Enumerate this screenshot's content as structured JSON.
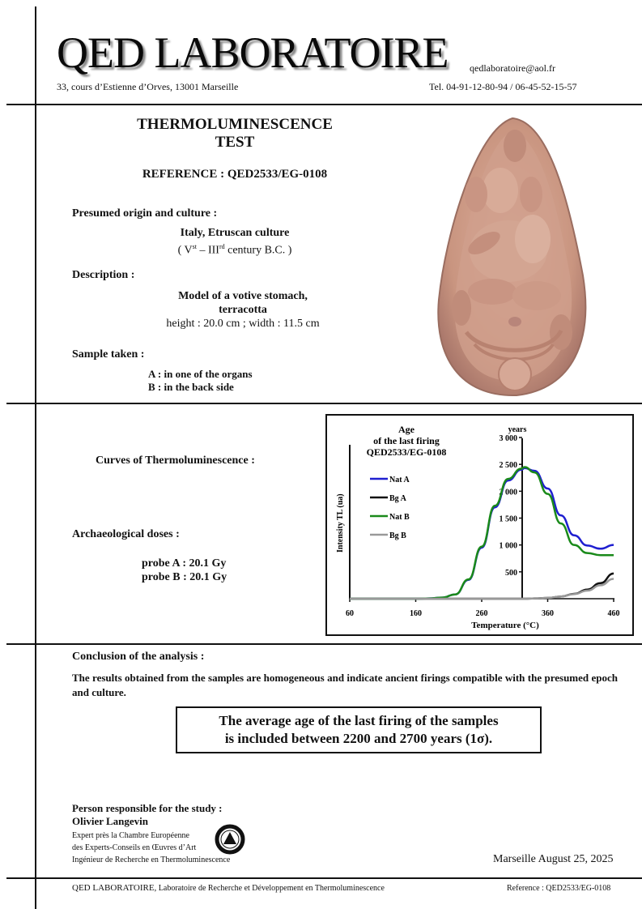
{
  "header": {
    "lab_name": "QED LABORATOIRE",
    "email": "qedlaboratoire@aol.fr",
    "address": "33, cours d’Estienne d’Orves, 13001 Marseille",
    "phone": "Tel. 04-91-12-80-94 / 06-45-52-15-57"
  },
  "test": {
    "title_line1": "THERMOLUMINESCENCE",
    "title_line2": "TEST",
    "reference": "REFERENCE : QED2533/EG-0108"
  },
  "origin": {
    "label": "Presumed origin and culture :",
    "value": "Italy, Etruscan culture",
    "period_open": "( V",
    "period_sup1": "st",
    "period_mid": " – III",
    "period_sup2": "rd",
    "period_close": " century B.C. )"
  },
  "description": {
    "label": "Description :",
    "line1": "Model of a votive stomach,",
    "line2": "terracotta",
    "dimensions": "height : 20.0 cm ; width : 11.5 cm"
  },
  "sample": {
    "label": "Sample taken :",
    "a": "A : in one of the organs",
    "b": "B : in the back side"
  },
  "photo": {
    "alt": "Terracotta votive stomach model with seated figure"
  },
  "curves": {
    "label": "Curves of Thermoluminescence :"
  },
  "doses": {
    "label": "Archaeological doses :",
    "probe_a": "probe A : 20.1 Gy",
    "probe_b": "probe B : 20.1 Gy"
  },
  "chart_data": {
    "type": "line",
    "title": "Age of the last firing QED2533/EG-0108",
    "title_lines": [
      "Age",
      "of the last firing",
      "QED2533/EG-0108"
    ],
    "xlabel": "Temperature (°C)",
    "ylabel": "Intensity TL (ua)",
    "secondary_axis_label": "years",
    "xlim": [
      60,
      460
    ],
    "ylim": [
      0,
      3000
    ],
    "x_ticks": [
      "60",
      "160",
      "260",
      "360",
      "460"
    ],
    "y_ticks": [
      "500",
      "1 000",
      "1 500",
      "2 000",
      "2 500",
      "3 000"
    ],
    "legend_position": "upper-left",
    "grid": false,
    "x": [
      60,
      160,
      180,
      200,
      220,
      240,
      260,
      280,
      300,
      320,
      325,
      340,
      360,
      380,
      400,
      420,
      440,
      460
    ],
    "series": [
      {
        "name": "Nat A",
        "color": "#1f1fd0",
        "values": [
          0,
          0,
          5,
          20,
          80,
          350,
          950,
          1700,
          2200,
          2400,
          2430,
          2380,
          2050,
          1550,
          1180,
          990,
          930,
          1000
        ]
      },
      {
        "name": "Bg A",
        "color": "#111111",
        "values": [
          0,
          0,
          0,
          0,
          0,
          0,
          0,
          0,
          0,
          0,
          0,
          5,
          15,
          40,
          90,
          170,
          290,
          470
        ]
      },
      {
        "name": "Nat B",
        "color": "#1a8a1a",
        "values": [
          0,
          0,
          5,
          20,
          80,
          360,
          970,
          1730,
          2230,
          2420,
          2450,
          2350,
          1950,
          1400,
          1000,
          850,
          810,
          810
        ]
      },
      {
        "name": "Bg B",
        "color": "#999999",
        "values": [
          0,
          0,
          0,
          0,
          0,
          0,
          0,
          0,
          0,
          0,
          0,
          5,
          15,
          40,
          85,
          150,
          250,
          370
        ]
      }
    ]
  },
  "conclusion": {
    "label": "Conclusion of the analysis :",
    "text": "The results obtained from the samples are homogeneous and indicate ancient firings compatible with the presumed epoch and culture.",
    "box_line1": "The average age of the last firing of the samples",
    "box_line2": "is included between 2200 and 2700 years (1σ)."
  },
  "signature": {
    "label": "Person responsible for the study :",
    "name": "Olivier Langevin",
    "title1": "Expert près la Chambre Européenne",
    "title2": "des Experts-Conseils en Œuvres d’Art",
    "title3": "Ingénieur de Recherche en Thermoluminescence",
    "place_date": "Marseille August 25, 2025"
  },
  "footer": {
    "lab_name": "QED LABORATOIRE,",
    "lab_desc": " Laboratoire de Recherche et Développement en Thermoluminescence",
    "reference": "Reference : QED2533/EG-0108"
  }
}
